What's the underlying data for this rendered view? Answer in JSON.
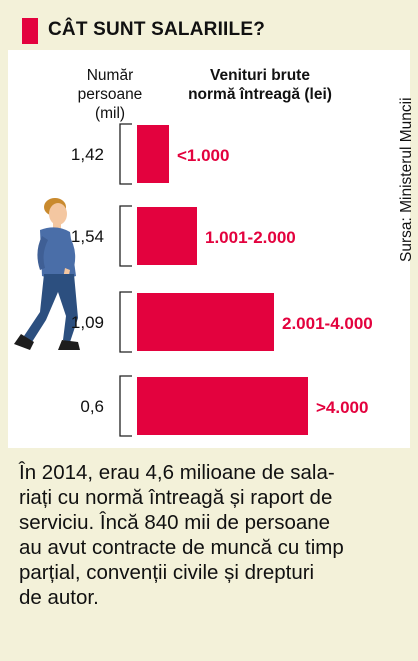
{
  "header": {
    "title": "CÂT SUNT SALARIILE?"
  },
  "source": "Sursa: Ministerul Muncii",
  "colors": {
    "bar": "#e3023e",
    "label": "#e3023e",
    "panel": "#ffffff",
    "background": "#f3f1d9"
  },
  "illustration": {
    "icon": "walking-man-icon"
  },
  "chart_data": {
    "type": "bar",
    "orientation": "horizontal",
    "left_column_title": [
      "Număr",
      "persoane",
      "(mil)"
    ],
    "bar_title": [
      "Venituri brute",
      "normă întreagă (lei)"
    ],
    "categories": [
      "<1.000",
      "1.001-2.000",
      "2.001-4.000",
      ">4.000"
    ],
    "values": [
      "1,42",
      "1,54",
      "1,09",
      "0,6"
    ],
    "values_numeric": [
      1.42,
      1.54,
      1.09,
      0.6
    ],
    "bar_lengths_relative": [
      0.19,
      0.35,
      0.8,
      1.0
    ]
  },
  "footer": {
    "text": "În 2014, erau 4,6 milioane de salariați cu normă întreagă și raport de serviciu. Încă 840 mii de persoane au avut contracte de muncă cu timp parțial, convenții civile și drepturi de autor.",
    "lines": [
      "În 2014, erau 4,6 milioane de sala-",
      "riați cu normă întreagă și raport de",
      "serviciu. Încă 840 mii de persoane",
      "au avut contracte de muncă cu timp",
      "parțial, convenții civile și drepturi",
      "de autor."
    ]
  }
}
